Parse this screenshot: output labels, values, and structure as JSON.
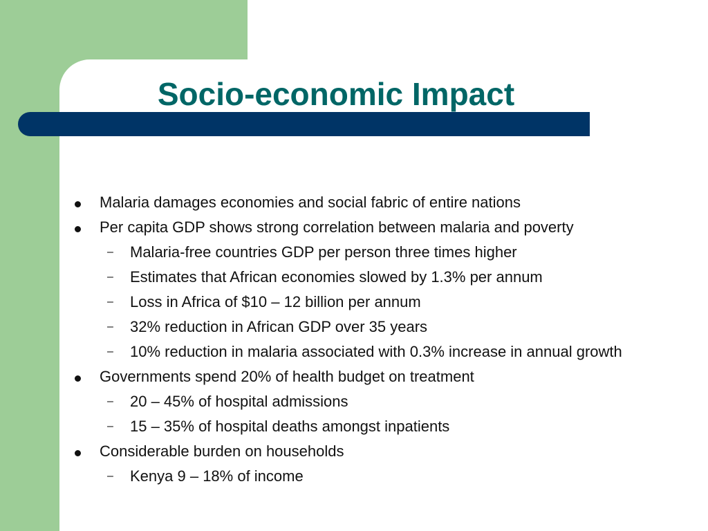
{
  "slide": {
    "title": "Socio-economic Impact",
    "bullets": [
      {
        "text": "Malaria damages economies and social fabric of entire nations",
        "sub": []
      },
      {
        "text": "Per capita GDP shows strong correlation between malaria and poverty",
        "sub": [
          "Malaria-free countries GDP per person three times higher",
          "Estimates that African economies slowed by 1.3% per annum",
          "Loss in Africa of $10 – 12 billion per annum",
          "32% reduction in African GDP over 35 years",
          "10% reduction in malaria associated with 0.3% increase in annual growth"
        ]
      },
      {
        "text": "Governments spend 20% of health budget on treatment",
        "sub": [
          "20 – 45% of hospital admissions",
          "15 – 35% of hospital deaths amongst inpatients"
        ]
      },
      {
        "text": "Considerable burden on households",
        "sub": [
          "Kenya 9 – 18% of income"
        ]
      }
    ],
    "colors": {
      "accent_green": "#9dcd97",
      "title_bar": "#003466",
      "title_text": "#006666"
    }
  }
}
